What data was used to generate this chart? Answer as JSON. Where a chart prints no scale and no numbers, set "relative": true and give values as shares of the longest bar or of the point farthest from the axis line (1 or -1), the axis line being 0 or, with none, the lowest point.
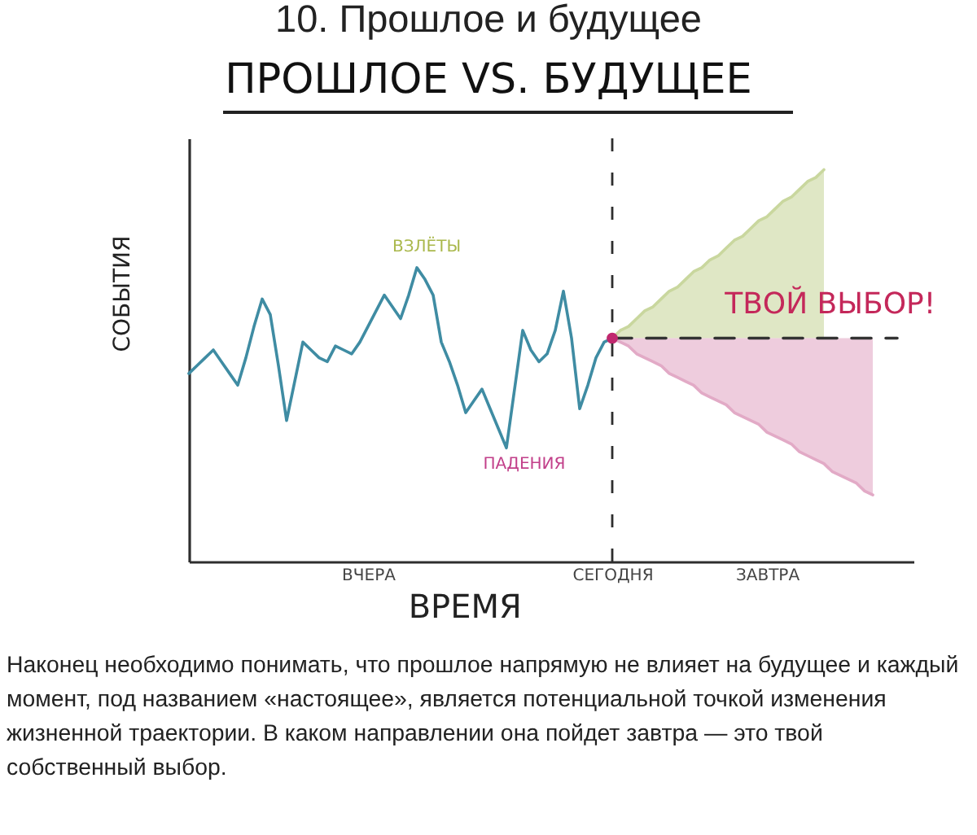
{
  "chart_data": {
    "type": "line",
    "title": "10. Прошлое и будущее",
    "subtitle": "ПРОШЛОЕ VS. БУДУЩЕЕ",
    "xlabel": "ВРЕМЯ",
    "ylabel": "СОБЫТИЯ",
    "relative": true,
    "categories": [
      null,
      null,
      null,
      null,
      null,
      null,
      null,
      null,
      null,
      null,
      null,
      null,
      null,
      null,
      null,
      null,
      null,
      null,
      null,
      null,
      null,
      null,
      "ВЧЕРА",
      null,
      null,
      null,
      null,
      null,
      null,
      null,
      null,
      null,
      null,
      null,
      null,
      null,
      null,
      null,
      null,
      null,
      null,
      null,
      null,
      null,
      null,
      null,
      null,
      null,
      null,
      null,
      null,
      null,
      "СЕГОДНЯ",
      null,
      null,
      null,
      null,
      null,
      null,
      null,
      null,
      null,
      null,
      null,
      null,
      null,
      null,
      null,
      null,
      null,
      null,
      "ЗАВТРА",
      null,
      null,
      null,
      null,
      null,
      null,
      null,
      null,
      null,
      null,
      null,
      null,
      null,
      null,
      null,
      null,
      null,
      null
    ],
    "series": [
      {
        "color": "#3f8ca3",
        "values": [
          0.48,
          0.5,
          0.52,
          0.54,
          0.51,
          0.48,
          0.45,
          0.52,
          0.6,
          0.67,
          0.63,
          0.5,
          0.36,
          0.46,
          0.56,
          0.54,
          0.52,
          0.51,
          0.55,
          0.54,
          0.53,
          0.56,
          0.6,
          0.64,
          0.68,
          0.65,
          0.62,
          0.68,
          0.75,
          0.72,
          0.68,
          0.56,
          0.51,
          0.45,
          0.38,
          0.41,
          0.44,
          0.39,
          0.34,
          0.29,
          0.44,
          0.59,
          0.54,
          0.51,
          0.53,
          0.59,
          0.69,
          0.57,
          0.39,
          0.45,
          0.52,
          0.56,
          0.57,
          null,
          null,
          null,
          null,
          null,
          null,
          null,
          null,
          null,
          null,
          null,
          null,
          null,
          null,
          null,
          null,
          null,
          null,
          null,
          null,
          null,
          null,
          null,
          null,
          null,
          null,
          null,
          null,
          null,
          null,
          null,
          null,
          null,
          null,
          null,
          null,
          null
        ]
      },
      {
        "color": "#c9d79e",
        "values": [
          null,
          null,
          null,
          null,
          null,
          null,
          null,
          null,
          null,
          null,
          null,
          null,
          null,
          null,
          null,
          null,
          null,
          null,
          null,
          null,
          null,
          null,
          null,
          null,
          null,
          null,
          null,
          null,
          null,
          null,
          null,
          null,
          null,
          null,
          null,
          null,
          null,
          null,
          null,
          null,
          null,
          null,
          null,
          null,
          null,
          null,
          null,
          null,
          null,
          null,
          null,
          null,
          0.57,
          0.59,
          0.6,
          0.62,
          0.64,
          0.65,
          0.67,
          0.69,
          0.7,
          0.72,
          0.74,
          0.75,
          0.77,
          0.78,
          0.8,
          0.82,
          0.83,
          0.85,
          0.87,
          0.88,
          0.9,
          0.92,
          0.93,
          0.95,
          0.97,
          0.98,
          1,
          null,
          null,
          null,
          null,
          null,
          null,
          null,
          null,
          null,
          null,
          null
        ],
        "lower": [
          null,
          null,
          null,
          null,
          null,
          null,
          null,
          null,
          null,
          null,
          null,
          null,
          null,
          null,
          null,
          null,
          null,
          null,
          null,
          null,
          null,
          null,
          null,
          null,
          null,
          null,
          null,
          null,
          null,
          null,
          null,
          null,
          null,
          null,
          null,
          null,
          null,
          null,
          null,
          null,
          null,
          null,
          null,
          null,
          null,
          null,
          null,
          null,
          null,
          null,
          null,
          null,
          0.57,
          0.57,
          0.57,
          0.57,
          0.57,
          0.57,
          0.57,
          0.57,
          0.57,
          0.57,
          0.57,
          0.57,
          0.57,
          0.57,
          0.57,
          0.57,
          0.57,
          0.57,
          0.57,
          0.57,
          0.57,
          0.57,
          0.57,
          0.57,
          0.57,
          0.57,
          0.57,
          null,
          null,
          null,
          null,
          null,
          null,
          null,
          null,
          null,
          null,
          null
        ],
        "upper": [
          null,
          null,
          null,
          null,
          null,
          null,
          null,
          null,
          null,
          null,
          null,
          null,
          null,
          null,
          null,
          null,
          null,
          null,
          null,
          null,
          null,
          null,
          null,
          null,
          null,
          null,
          null,
          null,
          null,
          null,
          null,
          null,
          null,
          null,
          null,
          null,
          null,
          null,
          null,
          null,
          null,
          null,
          null,
          null,
          null,
          null,
          null,
          null,
          null,
          null,
          null,
          null,
          0.57,
          0.59,
          0.6,
          0.62,
          0.64,
          0.65,
          0.67,
          0.69,
          0.7,
          0.72,
          0.74,
          0.75,
          0.77,
          0.78,
          0.8,
          0.82,
          0.83,
          0.85,
          0.87,
          0.88,
          0.9,
          0.92,
          0.93,
          0.95,
          0.97,
          0.98,
          1,
          null,
          null,
          null,
          null,
          null,
          null,
          null,
          null,
          null,
          null,
          null
        ]
      },
      {
        "color": "#e2aac6",
        "values": [
          null,
          null,
          null,
          null,
          null,
          null,
          null,
          null,
          null,
          null,
          null,
          null,
          null,
          null,
          null,
          null,
          null,
          null,
          null,
          null,
          null,
          null,
          null,
          null,
          null,
          null,
          null,
          null,
          null,
          null,
          null,
          null,
          null,
          null,
          null,
          null,
          null,
          null,
          null,
          null,
          null,
          null,
          null,
          null,
          null,
          null,
          null,
          null,
          null,
          null,
          null,
          null,
          0.57,
          0.56,
          0.55,
          0.53,
          0.52,
          0.51,
          0.5,
          0.48,
          0.47,
          0.46,
          0.45,
          0.43,
          0.42,
          0.41,
          0.4,
          0.38,
          0.37,
          0.36,
          0.35,
          0.33,
          0.32,
          0.31,
          0.3,
          0.28,
          0.27,
          0.26,
          0.25,
          0.23,
          0.22,
          0.21,
          0.2,
          0.18,
          0.17,
          null,
          null,
          null,
          null,
          null
        ],
        "lower": [
          null,
          null,
          null,
          null,
          null,
          null,
          null,
          null,
          null,
          null,
          null,
          null,
          null,
          null,
          null,
          null,
          null,
          null,
          null,
          null,
          null,
          null,
          null,
          null,
          null,
          null,
          null,
          null,
          null,
          null,
          null,
          null,
          null,
          null,
          null,
          null,
          null,
          null,
          null,
          null,
          null,
          null,
          null,
          null,
          null,
          null,
          null,
          null,
          null,
          null,
          null,
          null,
          0.57,
          0.56,
          0.55,
          0.53,
          0.52,
          0.51,
          0.5,
          0.48,
          0.47,
          0.46,
          0.45,
          0.43,
          0.42,
          0.41,
          0.4,
          0.38,
          0.37,
          0.36,
          0.35,
          0.33,
          0.32,
          0.31,
          0.3,
          0.28,
          0.27,
          0.26,
          0.25,
          0.23,
          0.22,
          0.21,
          0.2,
          0.18,
          0.17,
          null,
          null,
          null,
          null,
          null
        ],
        "upper": [
          null,
          null,
          null,
          null,
          null,
          null,
          null,
          null,
          null,
          null,
          null,
          null,
          null,
          null,
          null,
          null,
          null,
          null,
          null,
          null,
          null,
          null,
          null,
          null,
          null,
          null,
          null,
          null,
          null,
          null,
          null,
          null,
          null,
          null,
          null,
          null,
          null,
          null,
          null,
          null,
          null,
          null,
          null,
          null,
          null,
          null,
          null,
          null,
          null,
          null,
          null,
          null,
          0.57,
          0.57,
          0.57,
          0.57,
          0.57,
          0.57,
          0.57,
          0.57,
          0.57,
          0.57,
          0.57,
          0.57,
          0.57,
          0.57,
          0.57,
          0.57,
          0.57,
          0.57,
          0.57,
          0.57,
          0.57,
          0.57,
          0.57,
          0.57,
          0.57,
          0.57,
          0.57,
          0.57,
          0.57,
          0.57,
          0.57,
          0.57,
          0.57,
          null,
          null,
          null,
          null,
          null
        ]
      },
      {
        "color": "#333333",
        "line_style": "dashed",
        "values": [
          null,
          null,
          null,
          null,
          null,
          null,
          null,
          null,
          null,
          null,
          null,
          null,
          null,
          null,
          null,
          null,
          null,
          null,
          null,
          null,
          null,
          null,
          null,
          null,
          null,
          null,
          null,
          null,
          null,
          null,
          null,
          null,
          null,
          null,
          null,
          null,
          null,
          null,
          null,
          null,
          null,
          null,
          null,
          null,
          null,
          null,
          null,
          null,
          null,
          null,
          null,
          null,
          0.57,
          0.57,
          0.57,
          0.57,
          0.57,
          0.57,
          0.57,
          0.57,
          0.57,
          0.57,
          0.57,
          0.57,
          0.57,
          0.57,
          0.57,
          0.57,
          0.57,
          0.57,
          0.57,
          0.57,
          0.57,
          0.57,
          0.57,
          0.57,
          0.57,
          0.57,
          0.57,
          0.57,
          0.57,
          0.57,
          0.57,
          0.57,
          0.57,
          0.57,
          0.57,
          0.57,
          null,
          null
        ]
      },
      {
        "type": "scatter",
        "color": "#c0286e",
        "marker": "circle",
        "x": [
          "СЕГОДНЯ"
        ],
        "values": [
          0.57
        ]
      }
    ],
    "ref_lines": [
      {
        "axis": "x",
        "value": "СЕГОДНЯ",
        "line_style": "dashed"
      }
    ],
    "annotations": [
      "ВЗЛЁТЫ",
      "ПАДЕНИЯ",
      "ТВОЙ ВЫБОР!",
      "Наконец необходимо понимать, что прошлое напрямую не влияет на будущее и каждый момент, под названием «настоящее», является потенциальной точкой изменения жизненной траектории. В каком направлении она пойдет завтра — это твой собственный выбор."
    ]
  }
}
